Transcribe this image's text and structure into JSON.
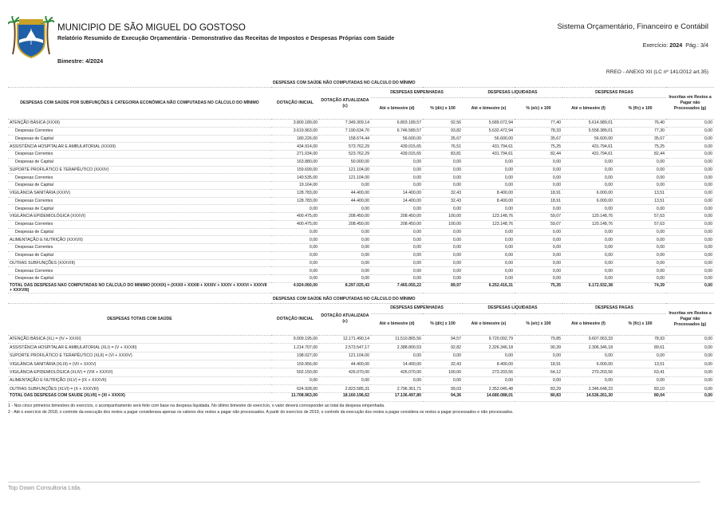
{
  "header": {
    "municipality": "MUNICIPIO DE SÃO MIGUEL DO GOSTOSO",
    "report": "Relatório Resumido de Execução Orçamentária - Demonstrativo das Receitas de Impostos e Despesas Próprias com Saúde",
    "system": "Sistema Orçamentário, Financeiro e Contábil",
    "exercise_label": "Exercício:",
    "exercise": "2024",
    "page_label": "Pág.:",
    "page": "3/4",
    "period": "Bimestre: 4/2024",
    "annex": "RREO - ANEXO XII (LC nº 141/2012 art.35)"
  },
  "tables": [
    {
      "title": "DESPESAS COM SAÚDE NÃO COMPUTADAS NO CÁLCULO DO MÍNIMO",
      "columns": {
        "label": "DESPESAS COM SAÚDE POR SUBFUNÇÕES E CATEGORIA ECONÔMICA NÃO COMPUTADAS NO CÁLCULO DO MÍNIMO",
        "initial": "DOTAÇÃO INICIAL",
        "updated": "DOTAÇÃO ATUALIZADA (c)",
        "groups": [
          {
            "name": "DESPESAS EMPENHADAS",
            "columns": [
              "Até o bimestre (d)",
              "% (d/c) x 100"
            ]
          },
          {
            "name": "DESPESAS LIQUIDADAS",
            "columns": [
              "Até o bimestre (e)",
              "% (e/c) x 100"
            ]
          },
          {
            "name": "DESPESAS PAGAS",
            "columns": [
              "Até o bimestre (f)",
              "% (f/c) x 100"
            ]
          }
        ],
        "unprocessed": "Inscritas em Restos a Pagar não Processados (g)"
      },
      "rows": [
        {
          "label": "ATENÇÃO BÁSICA (XXXII)",
          "cells": [
            "3.800.189,00",
            "7.349.309,14",
            "6.803.189,57",
            "92,56",
            "5.689.072,94",
            "77,40",
            "5.614.989,01",
            "76,40",
            "0,00"
          ],
          "items": [
            {
              "label": "Despesas Correntes",
              "cells": [
                "3.619.963,00",
                "7.190.634,70",
                "6.746.589,57",
                "93,82",
                "5.632.472,94",
                "78,33",
                "5.558.389,01",
                "77,30",
                "0,00"
              ]
            },
            {
              "label": "Despesas de Capital",
              "cells": [
                "180.226,00",
                "158.674,44",
                "56.600,00",
                "35,67",
                "56.600,00",
                "35,67",
                "56.600,00",
                "35,67",
                "0,00"
              ]
            }
          ]
        },
        {
          "label": "ASSISTÊNCIA HOSPITALAR E AMBULATORIAL (XXXIII)",
          "cells": [
            "434.914,00",
            "573.762,29",
            "439.015,65",
            "76,51",
            "431.794,61",
            "75,25",
            "431.794,61",
            "75,25",
            "0,00"
          ],
          "items": [
            {
              "label": "Despesas Correntes",
              "cells": [
                "271.034,00",
                "523.762,29",
                "439.015,65",
                "83,81",
                "431.794,61",
                "82,44",
                "431.794,61",
                "82,44",
                "0,00"
              ]
            },
            {
              "label": "Despesas de Capital",
              "cells": [
                "163.880,00",
                "50.000,00",
                "0,00",
                "0,00",
                "0,00",
                "0,00",
                "0,00",
                "0,00",
                "0,00"
              ]
            }
          ]
        },
        {
          "label": "SUPORTE PROFILÁTICO E TERAPÊUTICO (XXXIV)",
          "cells": [
            "159.699,00",
            "121.104,00",
            "0,00",
            "0,00",
            "0,00",
            "0,00",
            "0,00",
            "0,00",
            "0,00"
          ],
          "items": [
            {
              "label": "Despesas Correntes",
              "cells": [
                "140.535,00",
                "121.104,00",
                "0,00",
                "0,00",
                "0,00",
                "0,00",
                "0,00",
                "0,00",
                "0,00"
              ]
            },
            {
              "label": "Despesas de Capital",
              "cells": [
                "19.164,00",
                "0,00",
                "0,00",
                "0,00",
                "0,00",
                "0,00",
                "0,00",
                "0,00",
                "0,00"
              ]
            }
          ]
        },
        {
          "label": "VIGILÂNCIA SANITÁRIA (XXXV)",
          "cells": [
            "128.783,00",
            "44.400,00",
            "14.400,00",
            "32,43",
            "8.400,00",
            "18,91",
            "6.000,00",
            "13,51",
            "0,00"
          ],
          "items": [
            {
              "label": "Despesas Correntes",
              "cells": [
                "128.783,00",
                "44.400,00",
                "14.400,00",
                "32,43",
                "8.400,00",
                "18,91",
                "6.000,00",
                "13,51",
                "0,00"
              ]
            },
            {
              "label": "Despesas de Capital",
              "cells": [
                "0,00",
                "0,00",
                "0,00",
                "0,00",
                "0,00",
                "0,00",
                "0,00",
                "0,00",
                "0,00"
              ]
            }
          ]
        },
        {
          "label": "VIGILÂNCIA EPIDEMIOLÓGICA (XXXVI)",
          "cells": [
            "400.475,00",
            "208.450,00",
            "208.450,00",
            "100,00",
            "123.148,76",
            "59,07",
            "120.148,76",
            "57,63",
            "0,00"
          ],
          "items": [
            {
              "label": "Despesas Correntes",
              "cells": [
                "400.475,00",
                "208.450,00",
                "208.450,00",
                "100,00",
                "123.148,76",
                "59,07",
                "120.148,76",
                "57,63",
                "0,00"
              ]
            },
            {
              "label": "Despesas de Capital",
              "cells": [
                "0,00",
                "0,00",
                "0,00",
                "0,00",
                "0,00",
                "0,00",
                "0,00",
                "0,00",
                "0,00"
              ]
            }
          ]
        },
        {
          "label": "ALIMENTAÇÃO E NUTRIÇÃO (XXXVII)",
          "cells": [
            "0,00",
            "0,00",
            "0,00",
            "0,00",
            "0,00",
            "0,00",
            "0,00",
            "0,00",
            "0,00"
          ],
          "items": [
            {
              "label": "Despesas Correntes",
              "cells": [
                "0,00",
                "0,00",
                "0,00",
                "0,00",
                "0,00",
                "0,00",
                "0,00",
                "0,00",
                "0,00"
              ]
            },
            {
              "label": "Despesas de Capital",
              "cells": [
                "0,00",
                "0,00",
                "0,00",
                "0,00",
                "0,00",
                "0,00",
                "0,00",
                "0,00",
                "0,00"
              ]
            }
          ]
        },
        {
          "label": "OUTRAS SUBFUNÇÕES (XXXVIII)",
          "cells": [
            "0,00",
            "0,00",
            "0,00",
            "0,00",
            "0,00",
            "0,00",
            "0,00",
            "0,00",
            "0,00"
          ],
          "items": [
            {
              "label": "Despesas Correntes",
              "cells": [
                "0,00",
                "0,00",
                "0,00",
                "0,00",
                "0,00",
                "0,00",
                "0,00",
                "0,00",
                "0,00"
              ]
            },
            {
              "label": "Despesas de Capital",
              "cells": [
                "0,00",
                "0,00",
                "0,00",
                "0,00",
                "0,00",
                "0,00",
                "0,00",
                "0,00",
                "0,00"
              ]
            }
          ]
        }
      ],
      "total": {
        "label": "TOTAL DAS DESPESAS NÃO COMPUTADAS NO CÁLCULO DO MÍNIMO (XXXIX) = (XXXII + XXXIII + XXXIV + XXXV + XXXVI + XXXVII + XXXVIII)",
        "cells": [
          "4.924.060,00",
          "8.297.025,43",
          "7.465.055,22",
          "89,97",
          "6.252.416,31",
          "75,35",
          "6.172.932,38",
          "74,39",
          "0,00"
        ]
      }
    },
    {
      "title": "DESPESAS COM SAÚDE NÃO COMPUTADAS NO CÁLCULO DO MÍNIMO",
      "columns": {
        "label": "DESPESAS TOTAIS COM SAÚDE",
        "initial": "DOTAÇÃO INICIAL",
        "updated": "DOTAÇÃO ATUALIZADA (c)",
        "groups": [
          {
            "name": "DESPESAS EMPENHADAS",
            "columns": [
              "Até o bimestre (d)",
              "% (d/c) x 100"
            ]
          },
          {
            "name": "DESPESAS LIQUIDADAS",
            "columns": [
              "Até o bimestre (e)",
              "% (e/c) x 100"
            ]
          },
          {
            "name": "DESPESAS PAGAS",
            "columns": [
              "Até o bimestre (f)",
              "% (f/c) x 100"
            ]
          }
        ],
        "unprocessed": "Inscritas em Restos a Pagar não Processados (g)"
      },
      "rows": [
        {
          "label": "ATENÇÃO BÁSICA (XL) = (IV + XXXII)",
          "cells": [
            "9.009.195,00",
            "12.171.490,14",
            "11.510.865,56",
            "94,57",
            "9.720.092,79",
            "79,85",
            "9.607.063,33",
            "78,93",
            "0,00"
          ]
        },
        {
          "label": "ASSISTÊNCIA HOSPITALAR E AMBULATORIAL (XLI) = (V + XXXIII)",
          "cells": [
            "1.214.707,00",
            "2.573.547,17",
            "2.388.800,53",
            "92,82",
            "2.326.346,18",
            "90,39",
            "2.306.346,18",
            "89,61",
            "0,00"
          ]
        },
        {
          "label": "SUPORTE PROFILÁTICO E TERAPÊUTICO (XLII) = (VI + XXXIV)",
          "cells": [
            "198.027,00",
            "121.104,00",
            "0,00",
            "0,00",
            "0,00",
            "0,00",
            "0,00",
            "0,00",
            "0,00"
          ]
        },
        {
          "label": "VIGILÂNCIA SANITÁRIA (XLIII) = (VII + XXXV)",
          "cells": [
            "159.956,00",
            "44.400,00",
            "14.400,00",
            "32,43",
            "8.400,00",
            "18,91",
            "6.000,00",
            "13,51",
            "0,00"
          ]
        },
        {
          "label": "VIGILÂNCIA EPIDEMIOLÓGICA (XLIV) = (VIII + XXXVI)",
          "cells": [
            "502.150,00",
            "426.070,00",
            "426.070,00",
            "100,00",
            "273.203,56",
            "64,12",
            "270.203,56",
            "63,41",
            "0,00"
          ]
        },
        {
          "label": "ALIMENTAÇÃO E NUTRIÇÃO (XLV) = (IX + XXXVII)",
          "cells": [
            "0,00",
            "0,00",
            "0,00",
            "0,00",
            "0,00",
            "0,00",
            "0,00",
            "0,00",
            "0,00"
          ]
        },
        {
          "label": "OUTRAS SUBFUNÇÕES (XLVI) = (X + XXXVIII)",
          "cells": [
            "624.928,00",
            "2.823.585,31",
            "2.796.361,71",
            "99,03",
            "2.352.045,48",
            "83,29",
            "2.346.648,23",
            "83,10",
            "0,00"
          ]
        }
      ],
      "total": {
        "label": "TOTAL DAS DESPESAS COM SAÚDE (XLVII) = (XI + XXXIX)",
        "cells": [
          "11.708.963,00",
          "18.160.196,62",
          "17.136.497,80",
          "94,36",
          "14.680.088,01",
          "80,83",
          "14.536.261,30",
          "80,04",
          "0,00"
        ]
      }
    }
  ],
  "footnotes": [
    "1 - Nos cinco primeiros bimestres do exercício, o acompanhamento será feito com base na despesa liquidada. No último bimestre do exercício, o valor deverá corresponder ao total da despesa empenhada.",
    "2 - Até o exercício de 2018, o controle da execução dos restos a pagar considerava apenas os valores dos restos a pagar não processados. A partir do exercício de 2019, o controle da execução dos restos a pagar considera os restos a pagar processados e não processados."
  ],
  "footer": "Top Down Consultoria Ltda."
}
